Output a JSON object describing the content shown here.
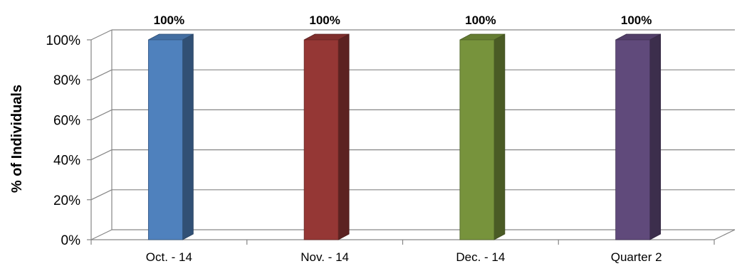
{
  "chart_data": {
    "type": "bar",
    "style": "3d-column",
    "title": "",
    "xlabel": "",
    "ylabel": "% of Individuals",
    "categories": [
      "Oct. - 14",
      "Nov. - 14",
      "Dec. - 14",
      "Quarter 2"
    ],
    "values": [
      100,
      100,
      100,
      100
    ],
    "data_labels": [
      "100%",
      "100%",
      "100%",
      "100%"
    ],
    "yticks": [
      "0%",
      "20%",
      "40%",
      "60%",
      "80%",
      "100%"
    ],
    "ylim": [
      0,
      100
    ],
    "grid": true,
    "legend": "none",
    "colors": [
      "#4F81BD",
      "#953735",
      "#77933C",
      "#604A7B"
    ]
  }
}
